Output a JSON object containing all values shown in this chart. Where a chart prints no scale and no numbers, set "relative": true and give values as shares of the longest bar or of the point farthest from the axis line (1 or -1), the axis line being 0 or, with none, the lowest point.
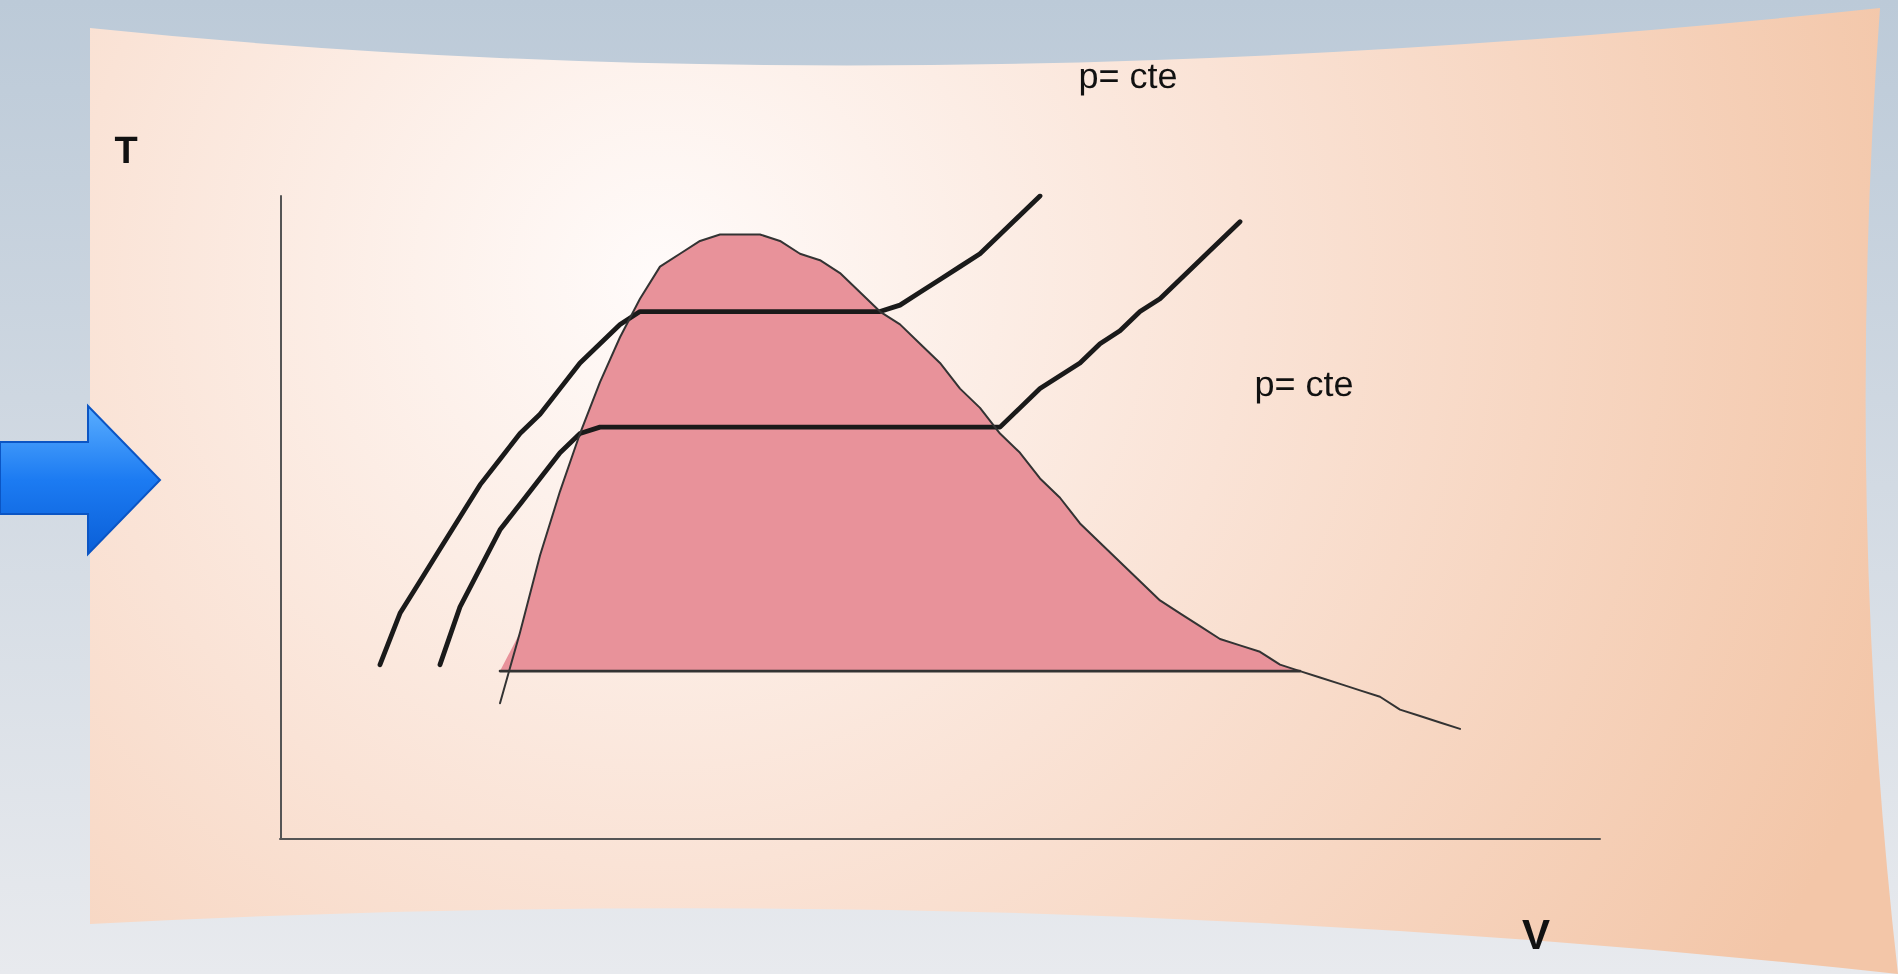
{
  "chart_data": {
    "type": "line",
    "relative": true,
    "xlabel": "V",
    "ylabel": "T",
    "annotations": [
      "p= cte",
      "p= cte"
    ],
    "marker": "none",
    "categories": [
      null,
      null,
      null,
      null,
      null,
      null,
      null,
      null,
      null,
      null,
      null,
      null,
      null,
      null,
      null,
      null,
      null,
      null,
      null,
      null,
      null,
      null,
      null,
      null,
      null,
      null,
      null,
      null,
      null,
      null,
      null,
      null,
      null,
      null,
      null,
      null,
      null,
      null,
      null,
      null,
      null,
      null,
      null,
      null,
      null,
      null,
      null,
      null,
      null,
      null,
      null,
      null,
      null,
      null,
      null,
      null,
      null,
      null,
      null,
      null,
      null,
      null,
      null,
      null,
      null,
      null,
      null
    ],
    "series": [
      {
        "color": "#e8929a",
        "values": [
          null,
          null,
          null,
          null,
          null,
          null,
          null,
          null,
          null,
          null,
          null,
          null,
          null,
          null,
          null,
          null,
          null,
          null,
          null,
          null,
          null,
          null,
          null,
          null,
          null,
          null,
          null,
          null,
          null,
          null,
          null,
          null,
          null,
          null,
          null,
          null,
          null,
          null,
          null,
          null,
          null,
          null,
          null,
          null,
          null,
          null,
          null,
          null,
          null,
          null,
          null,
          null,
          null,
          null,
          null,
          null,
          null,
          null,
          null,
          null,
          null,
          null,
          null,
          null,
          null,
          null,
          null
        ],
        "lower": [
          null,
          null,
          null,
          null,
          null,
          null,
          null,
          null,
          null,
          null,
          null,
          0.26,
          0.26,
          0.26,
          0.26,
          0.26,
          0.26,
          0.26,
          0.26,
          0.26,
          0.26,
          0.26,
          0.26,
          0.26,
          0.26,
          0.26,
          0.26,
          0.26,
          0.26,
          0.26,
          0.26,
          0.26,
          0.26,
          0.26,
          0.26,
          0.26,
          0.26,
          0.26,
          0.26,
          0.26,
          0.26,
          0.26,
          0.26,
          0.26,
          0.26,
          0.26,
          0.26,
          0.26,
          0.26,
          0.26,
          0.26,
          0.26,
          null,
          null,
          null,
          null,
          null,
          null,
          null,
          null,
          null,
          null,
          null,
          null,
          null,
          null,
          null
        ],
        "upper": [
          null,
          null,
          null,
          null,
          null,
          null,
          null,
          null,
          null,
          null,
          null,
          0.26,
          0.32,
          0.44,
          0.54,
          0.63,
          0.71,
          0.78,
          0.84,
          0.89,
          0.91,
          0.93,
          0.94,
          0.94,
          0.94,
          0.93,
          0.91,
          0.9,
          0.88,
          0.85,
          0.82,
          0.8,
          0.77,
          0.74,
          0.7,
          0.67,
          0.63,
          0.6,
          0.56,
          0.53,
          0.49,
          0.46,
          0.43,
          0.4,
          0.37,
          0.35,
          0.33,
          0.31,
          0.3,
          0.29,
          0.27,
          0.26,
          null,
          null,
          null,
          null,
          null,
          null,
          null,
          null,
          null,
          null,
          null,
          null,
          null,
          null,
          null
        ]
      },
      {
        "color": "#1a1a1a",
        "values": [
          null,
          null,
          null,
          null,
          null,
          0.27,
          0.35,
          0.4,
          0.45,
          0.5,
          0.55,
          0.59,
          0.63,
          0.66,
          0.7,
          0.74,
          0.77,
          0.8,
          0.82,
          0.82,
          0.82,
          0.82,
          0.82,
          0.82,
          0.82,
          0.82,
          0.82,
          0.82,
          0.82,
          0.82,
          0.82,
          0.83,
          0.85,
          0.87,
          0.89,
          0.91,
          0.94,
          0.97,
          1,
          null,
          null,
          null,
          null,
          null,
          null,
          null,
          null,
          null,
          null,
          null,
          null,
          null,
          null,
          null,
          null,
          null,
          null,
          null,
          null,
          null,
          null,
          null,
          null,
          null,
          null,
          null,
          null
        ]
      },
      {
        "color": "#1a1a1a",
        "values": [
          null,
          null,
          null,
          null,
          null,
          null,
          null,
          null,
          0.27,
          0.36,
          0.42,
          0.48,
          0.52,
          0.56,
          0.6,
          0.63,
          0.64,
          0.64,
          0.64,
          0.64,
          0.64,
          0.64,
          0.64,
          0.64,
          0.64,
          0.64,
          0.64,
          0.64,
          0.64,
          0.64,
          0.64,
          0.64,
          0.64,
          0.64,
          0.64,
          0.64,
          0.64,
          0.67,
          0.7,
          0.72,
          0.74,
          0.77,
          0.79,
          0.82,
          0.84,
          0.87,
          0.9,
          0.93,
          0.96,
          null,
          null,
          null,
          null,
          null,
          null,
          null,
          null,
          null,
          null,
          null,
          null,
          null,
          null,
          null,
          null,
          null,
          null
        ]
      },
      {
        "color": "#333333",
        "values": [
          null,
          null,
          null,
          null,
          null,
          null,
          null,
          null,
          null,
          null,
          null,
          0.21,
          0.32,
          0.44,
          0.54,
          0.63,
          0.71,
          0.78,
          0.84,
          0.89,
          0.91,
          0.93,
          0.94,
          0.94,
          0.94,
          0.93,
          0.91,
          0.9,
          0.88,
          0.85,
          0.82,
          0.8,
          0.77,
          0.74,
          0.7,
          0.67,
          0.63,
          0.6,
          0.56,
          0.53,
          0.49,
          0.46,
          0.43,
          0.4,
          0.37,
          0.35,
          0.33,
          0.31,
          0.3,
          0.29,
          0.27,
          0.26,
          0.25,
          0.24,
          0.23,
          0.22,
          0.2,
          0.19,
          0.18,
          0.17,
          null,
          null,
          null,
          null,
          null,
          null,
          null
        ]
      },
      {
        "color": "#333333",
        "values": [
          null,
          null,
          null,
          null,
          null,
          null,
          null,
          null,
          null,
          null,
          null,
          0.26,
          0.26,
          0.26,
          0.26,
          0.26,
          0.26,
          0.26,
          0.26,
          0.26,
          0.26,
          0.26,
          0.26,
          0.26,
          0.26,
          0.26,
          0.26,
          0.26,
          0.26,
          0.26,
          0.26,
          0.26,
          0.26,
          0.26,
          0.26,
          0.26,
          0.26,
          0.26,
          0.26,
          0.26,
          0.26,
          0.26,
          0.26,
          0.26,
          0.26,
          0.26,
          0.26,
          0.26,
          0.26,
          0.26,
          0.26,
          0.26,
          null,
          null,
          null,
          null,
          null,
          null,
          null,
          null,
          null,
          null,
          null,
          null,
          null,
          null,
          null
        ]
      }
    ]
  }
}
